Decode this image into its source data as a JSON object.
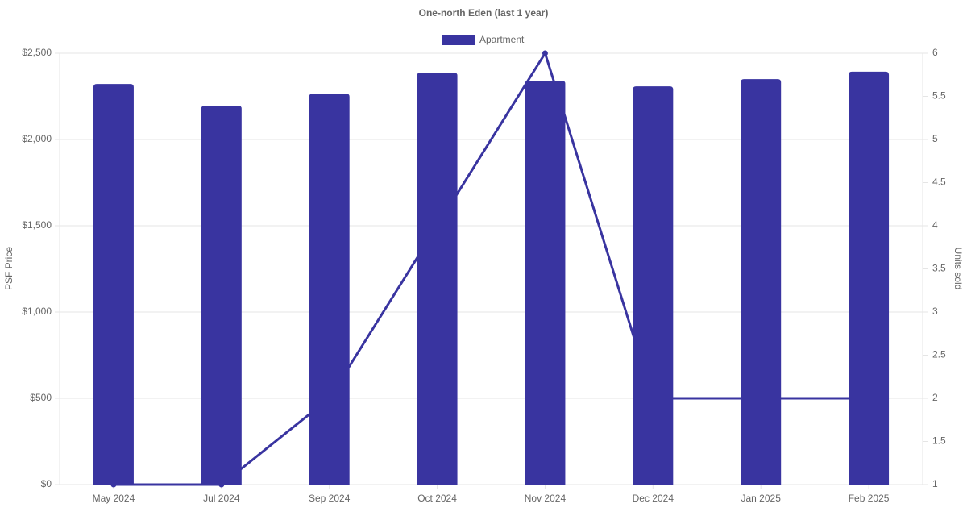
{
  "chart_data": {
    "type": "bar-line",
    "title": "One-north Eden (last 1 year)",
    "categories": [
      "May 2024",
      "Jul 2024",
      "Sep 2024",
      "Oct 2024",
      "Nov 2024",
      "Dec 2024",
      "Jan 2025",
      "Feb 2025"
    ],
    "series": [
      {
        "name": "Apartment",
        "type": "bar",
        "color": "#3934a0",
        "values": [
          2322,
          2196,
          2266,
          2388,
          2341,
          2308,
          2350,
          2393
        ]
      },
      {
        "type": "line",
        "axis": "y2",
        "color": "#3934a0",
        "values": [
          1,
          1,
          2,
          4,
          6,
          2,
          2,
          2
        ]
      }
    ],
    "ylabel": "PSF Price",
    "y2label": "Units sold",
    "ylim": [
      0,
      2500
    ],
    "yticks": [
      {
        "value": 0,
        "label": "$0"
      },
      {
        "value": 500,
        "label": "$500"
      },
      {
        "value": 1000,
        "label": "$1,000"
      },
      {
        "value": 1500,
        "label": "$1,500"
      },
      {
        "value": 2000,
        "label": "$2,000"
      },
      {
        "value": 2500,
        "label": "$2,500"
      }
    ],
    "y2lim": [
      1,
      6
    ],
    "y2ticks": [
      1,
      1.5,
      2,
      2.5,
      3,
      3.5,
      4,
      4.5,
      5,
      5.5,
      6
    ],
    "grid": true,
    "legend": "top"
  }
}
